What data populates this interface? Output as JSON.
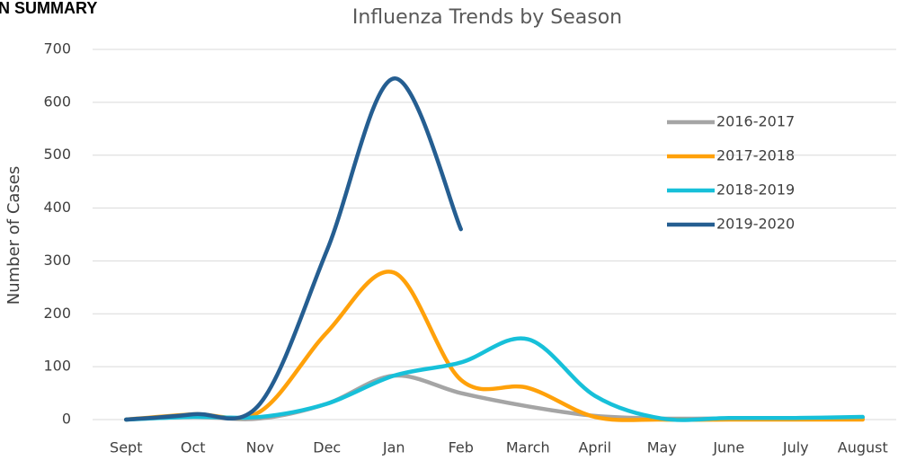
{
  "page_heading": "N SUMMARY",
  "chart_data": {
    "type": "line",
    "title": "Influenza Trends by Season",
    "y_label": "Number of Cases",
    "categories": [
      "Sept",
      "Oct",
      "Nov",
      "Dec",
      "Jan",
      "Feb",
      "March",
      "April",
      "May",
      "June",
      "July",
      "August"
    ],
    "series": [
      {
        "name": "2016-2017",
        "color": "#a5a5a5",
        "values": [
          0,
          5,
          2,
          30,
          83,
          50,
          25,
          7,
          2,
          2,
          2,
          3
        ]
      },
      {
        "name": "2017-2018",
        "color": "#ffa10a",
        "values": [
          0,
          10,
          15,
          165,
          278,
          75,
          60,
          5,
          0,
          0,
          0,
          0
        ]
      },
      {
        "name": "2018-2019",
        "color": "#17c0d9",
        "values": [
          0,
          5,
          5,
          30,
          83,
          108,
          152,
          45,
          2,
          3,
          3,
          5
        ]
      },
      {
        "name": "2019-2020",
        "color": "#255e91",
        "values": [
          0,
          10,
          30,
          320,
          645,
          360,
          null,
          null,
          null,
          null,
          null,
          null
        ]
      }
    ],
    "ylim": [
      0,
      700
    ],
    "yticks": [
      0,
      100,
      200,
      300,
      400,
      500,
      600,
      700
    ],
    "grid": true,
    "legend": "right"
  }
}
